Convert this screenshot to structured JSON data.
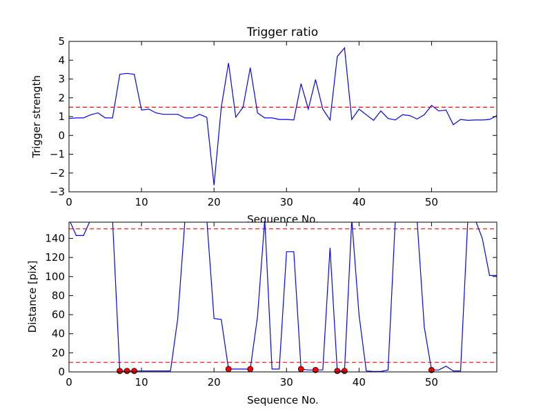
{
  "chart_data": [
    {
      "type": "line",
      "title": "Trigger ratio",
      "xlabel": "Sequence No.",
      "ylabel": "Trigger strength",
      "xlim": [
        0,
        59
      ],
      "ylim": [
        -3,
        5
      ],
      "xticks": [
        0,
        10,
        20,
        30,
        40,
        50
      ],
      "yticks": [
        -3,
        -2,
        -1,
        0,
        1,
        2,
        3,
        4,
        5
      ],
      "ytick_labels": [
        "−3",
        "−2",
        "−1",
        "0",
        "1",
        "2",
        "3",
        "4",
        "5"
      ],
      "grid": false,
      "colors": {
        "line": "#0000ff",
        "threshold": "#ff0000"
      },
      "threshold": 1.5,
      "x": [
        0,
        1,
        2,
        3,
        4,
        5,
        6,
        7,
        8,
        9,
        10,
        11,
        12,
        13,
        14,
        15,
        16,
        17,
        18,
        19,
        20,
        21,
        22,
        23,
        24,
        25,
        26,
        27,
        28,
        29,
        30,
        31,
        32,
        33,
        34,
        35,
        36,
        37,
        38,
        39,
        40,
        41,
        42,
        43,
        44,
        45,
        46,
        47,
        48,
        49,
        50,
        51,
        52,
        53,
        54,
        55,
        56,
        57,
        58,
        59
      ],
      "values": [
        0.9,
        0.93,
        0.93,
        1.1,
        1.2,
        0.93,
        0.93,
        3.25,
        3.3,
        3.25,
        1.35,
        1.4,
        1.2,
        1.12,
        1.12,
        1.12,
        0.93,
        0.93,
        1.12,
        0.96,
        -2.65,
        1.5,
        3.85,
        0.97,
        1.5,
        3.6,
        1.2,
        0.93,
        0.93,
        0.85,
        0.85,
        0.82,
        2.75,
        1.4,
        2.97,
        1.4,
        0.82,
        4.2,
        4.65,
        0.85,
        1.4,
        1.1,
        0.8,
        1.3,
        0.9,
        0.82,
        1.1,
        1.05,
        0.87,
        1.1,
        1.6,
        1.3,
        1.35,
        0.57,
        0.85,
        0.8,
        0.82,
        0.82,
        0.85,
        1.05
      ]
    },
    {
      "type": "line",
      "title": "",
      "xlabel": "Sequence No.",
      "ylabel": "Distance [pix]",
      "xlim": [
        0,
        59
      ],
      "ylim": [
        0,
        157
      ],
      "xticks": [
        0,
        10,
        20,
        30,
        40,
        50
      ],
      "yticks": [
        0,
        20,
        40,
        60,
        80,
        100,
        120,
        140
      ],
      "grid": false,
      "colors": {
        "line": "#0000ff",
        "threshold": "#ff0000",
        "markers": "#ff0000"
      },
      "thresholds": [
        150,
        10
      ],
      "x": [
        0,
        1,
        2,
        3,
        4,
        5,
        6,
        7,
        8,
        9,
        10,
        11,
        12,
        13,
        14,
        15,
        16,
        17,
        18,
        19,
        20,
        21,
        22,
        23,
        24,
        25,
        26,
        27,
        28,
        29,
        30,
        31,
        32,
        33,
        34,
        35,
        36,
        37,
        38,
        39,
        40,
        41,
        42,
        43,
        44,
        45,
        46,
        47,
        48,
        49,
        50,
        51,
        52,
        53,
        54,
        55,
        56,
        57,
        58,
        59
      ],
      "values": [
        160,
        143,
        143,
        160,
        160,
        160,
        160,
        1,
        1,
        1,
        1,
        1,
        1,
        1,
        1,
        56,
        160,
        160,
        160,
        160,
        56,
        55,
        3,
        3,
        3,
        3,
        58,
        160,
        3,
        3,
        126,
        126,
        3,
        2,
        2,
        2,
        130,
        1,
        1,
        160,
        60,
        1,
        0.5,
        0.5,
        2,
        160,
        160,
        160,
        160,
        47,
        2,
        2,
        6,
        1,
        1,
        160,
        160,
        140,
        101,
        101
      ],
      "markers": {
        "x": [
          7,
          8,
          9,
          22,
          25,
          32,
          34,
          37,
          38,
          50
        ],
        "y": [
          1,
          1,
          1,
          3,
          3,
          3,
          2,
          1,
          1,
          2
        ]
      }
    }
  ]
}
